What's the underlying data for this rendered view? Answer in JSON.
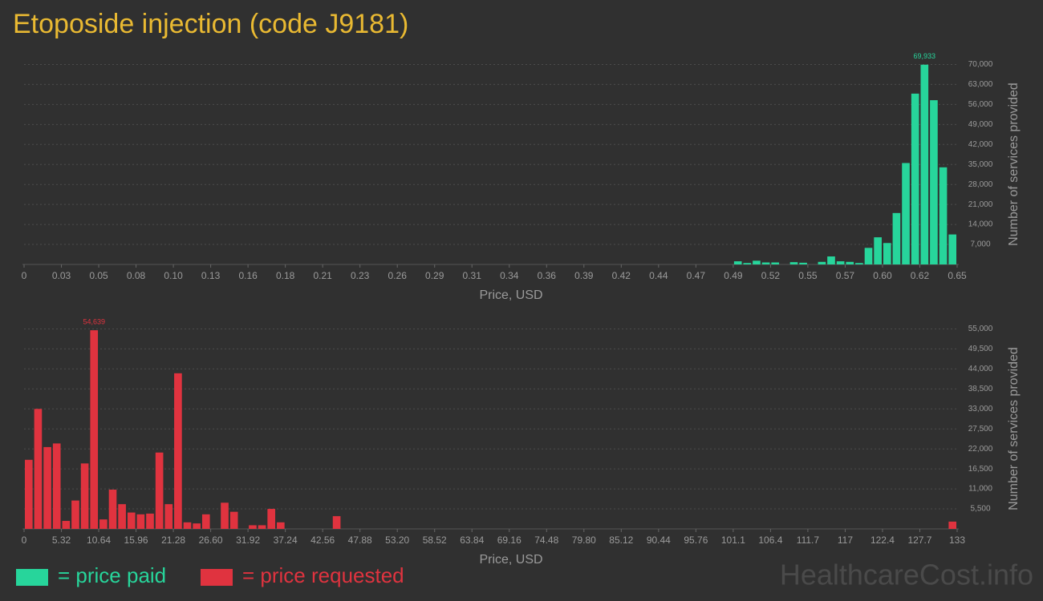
{
  "title": "Etoposide injection (code J9181)",
  "watermark": "HealthcareCost.info",
  "chart_data": [
    {
      "type": "histogram",
      "x_label": "Price, USD",
      "y_label": "Number of services provided",
      "xlim": [
        0,
        0.65
      ],
      "xticks": [
        0,
        {
          "value": 0.026,
          "label": "0.03"
        },
        {
          "value": 0.052,
          "label": "0.05"
        },
        {
          "value": 0.078,
          "label": "0.08"
        },
        {
          "value": 0.104,
          "label": "0.10"
        },
        0.13,
        {
          "value": 0.156,
          "label": "0.16"
        },
        {
          "value": 0.182,
          "label": "0.18"
        },
        {
          "value": 0.208,
          "label": "0.21"
        },
        {
          "value": 0.234,
          "label": "0.23"
        },
        0.26,
        {
          "value": 0.286,
          "label": "0.29"
        },
        {
          "value": 0.312,
          "label": "0.31"
        },
        {
          "value": 0.338,
          "label": "0.34"
        },
        {
          "value": 0.364,
          "label": "0.36"
        },
        0.39,
        {
          "value": 0.416,
          "label": "0.42"
        },
        {
          "value": 0.442,
          "label": "0.44"
        },
        {
          "value": 0.468,
          "label": "0.47"
        },
        {
          "value": 0.494,
          "label": "0.49"
        },
        0.52,
        {
          "value": 0.546,
          "label": "0.55"
        },
        {
          "value": 0.572,
          "label": "0.57"
        },
        {
          "value": 0.598,
          "label": "0.60"
        },
        {
          "value": 0.624,
          "label": "0.62"
        },
        0.65
      ],
      "ylim": [
        0,
        73500
      ],
      "yticks": [
        {
          "value": 7000,
          "label": "7,000"
        },
        {
          "value": 14000,
          "label": "14,000"
        },
        {
          "value": 21000,
          "label": "21,000"
        },
        {
          "value": 28000,
          "label": "28,000"
        },
        {
          "value": 35000,
          "label": "35,000"
        },
        {
          "value": 42000,
          "label": "42,000"
        },
        {
          "value": 49000,
          "label": "49,000"
        },
        {
          "value": 56000,
          "label": "56,000"
        },
        {
          "value": 63000,
          "label": "63,000"
        },
        {
          "value": 70000,
          "label": "70,000"
        }
      ],
      "grid": true,
      "bins": [
        0.494,
        0.5005,
        0.507,
        0.5135,
        0.52,
        0.5265,
        0.533,
        0.5395,
        0.546,
        0.5525,
        0.559,
        0.5655,
        0.572,
        0.5785,
        0.585,
        0.5915,
        0.598,
        0.6045,
        0.611,
        0.6175,
        0.624,
        0.6305,
        0.637,
        0.6435,
        0.65
      ],
      "series": [
        {
          "name": "= price paid",
          "color": "#27d59b",
          "values": [
            1100,
            500,
            1300,
            700,
            700,
            0,
            800,
            600,
            0,
            900,
            2800,
            1100,
            900,
            500,
            5800,
            9500,
            7500,
            18000,
            35500,
            59800,
            69933,
            57500,
            34000,
            10500
          ],
          "value_labels": [
            null,
            null,
            null,
            null,
            null,
            null,
            null,
            null,
            null,
            null,
            null,
            null,
            null,
            null,
            null,
            null,
            null,
            null,
            null,
            null,
            "69,933",
            null,
            null,
            null
          ]
        }
      ]
    },
    {
      "type": "histogram",
      "x_label": "Price, USD",
      "y_label": "Number of services provided",
      "xlim": [
        0,
        133
      ],
      "xticks": [
        0,
        5.32,
        10.64,
        15.96,
        21.28,
        {
          "value": 26.6,
          "label": "26.60"
        },
        31.92,
        37.24,
        42.56,
        47.88,
        {
          "value": 53.2,
          "label": "53.20"
        },
        58.52,
        63.84,
        69.16,
        74.48,
        {
          "value": 79.8,
          "label": "79.80"
        },
        85.12,
        90.44,
        95.76,
        {
          "value": 101.08,
          "label": "101.1"
        },
        106.4,
        {
          "value": 111.72,
          "label": "111.7"
        },
        {
          "value": 117.04,
          "label": "117"
        },
        {
          "value": 122.36,
          "label": "122.4"
        },
        {
          "value": 127.68,
          "label": "127.7"
        },
        133
      ],
      "ylim": [
        0,
        57750
      ],
      "yticks": [
        {
          "value": 5500,
          "label": "5,500"
        },
        {
          "value": 11000,
          "label": "11,000"
        },
        {
          "value": 16500,
          "label": "16,500"
        },
        {
          "value": 22000,
          "label": "22,000"
        },
        {
          "value": 27500,
          "label": "27,500"
        },
        {
          "value": 33000,
          "label": "33,000"
        },
        {
          "value": 38500,
          "label": "38,500"
        },
        {
          "value": 44000,
          "label": "44,000"
        },
        {
          "value": 49500,
          "label": "49,500"
        },
        {
          "value": 55000,
          "label": "55,000"
        }
      ],
      "grid": true,
      "bins": [
        0,
        1.33,
        2.66,
        3.99,
        5.32,
        6.65,
        7.98,
        9.31,
        10.64,
        11.97,
        13.3,
        14.63,
        15.96,
        17.29,
        18.62,
        19.95,
        21.28,
        22.61,
        23.94,
        25.27,
        26.6,
        27.93,
        29.26,
        30.59,
        31.92,
        33.25,
        34.58,
        35.91,
        37.24,
        38.57,
        39.9,
        41.23,
        42.56,
        43.89,
        45.22,
        46.55,
        47.88,
        49.21,
        50.54,
        51.87,
        53.2,
        54.53,
        55.86,
        57.19,
        58.52,
        59.85,
        61.18,
        62.51,
        63.84,
        65.17,
        66.5,
        67.83,
        69.16,
        70.49,
        71.82,
        73.15,
        74.48,
        75.81,
        77.14,
        78.47,
        79.8,
        81.13,
        82.46,
        83.79,
        85.12,
        86.45,
        87.78,
        89.11,
        90.44,
        91.77,
        93.1,
        94.43,
        95.76,
        97.09,
        98.42,
        99.75,
        101.08,
        102.41,
        103.74,
        105.07,
        106.4,
        107.73,
        109.06,
        110.39,
        111.72,
        113.05,
        114.38,
        115.71,
        117.04,
        118.37,
        119.7,
        121.03,
        122.36,
        123.69,
        125.02,
        126.35,
        127.68,
        129.01,
        130.34,
        131.67,
        133
      ],
      "series": [
        {
          "name": "= price requested",
          "color": "#e0333f",
          "values": [
            19000,
            33000,
            22500,
            23500,
            2200,
            7800,
            18000,
            54639,
            2600,
            10800,
            6800,
            4500,
            4000,
            4200,
            21000,
            6800,
            42800,
            1800,
            1500,
            4000,
            0,
            7200,
            4700,
            0,
            1000,
            1000,
            5500,
            1800,
            0,
            0,
            0,
            0,
            0,
            3500,
            0,
            0,
            0,
            0,
            0,
            0,
            0,
            0,
            0,
            0,
            0,
            0,
            0,
            0,
            0,
            0,
            0,
            0,
            0,
            0,
            0,
            0,
            0,
            0,
            0,
            0,
            0,
            0,
            0,
            0,
            0,
            0,
            0,
            0,
            0,
            0,
            0,
            0,
            0,
            0,
            0,
            0,
            0,
            0,
            0,
            0,
            0,
            0,
            0,
            0,
            0,
            0,
            0,
            0,
            0,
            0,
            0,
            0,
            0,
            0,
            0,
            0,
            0,
            0,
            0,
            2000
          ],
          "value_labels": [
            null,
            null,
            null,
            null,
            null,
            null,
            null,
            "54,639",
            null,
            null,
            null,
            null,
            null,
            null,
            null,
            null,
            null,
            null,
            null,
            null,
            null,
            null,
            null,
            null,
            null,
            null,
            null,
            null,
            null,
            null,
            null,
            null,
            null,
            null,
            null,
            null,
            null,
            null,
            null,
            null,
            null,
            null,
            null,
            null,
            null,
            null,
            null,
            null,
            null,
            null,
            null,
            null,
            null,
            null,
            null,
            null,
            null,
            null,
            null,
            null,
            null,
            null,
            null,
            null,
            null,
            null,
            null,
            null,
            null,
            null,
            null,
            null,
            null,
            null,
            null,
            null,
            null,
            null,
            null,
            null,
            null,
            null,
            null,
            null,
            null,
            null,
            null,
            null,
            null,
            null,
            null,
            null,
            null,
            null,
            null,
            null,
            null,
            null,
            null,
            null
          ]
        }
      ]
    }
  ]
}
